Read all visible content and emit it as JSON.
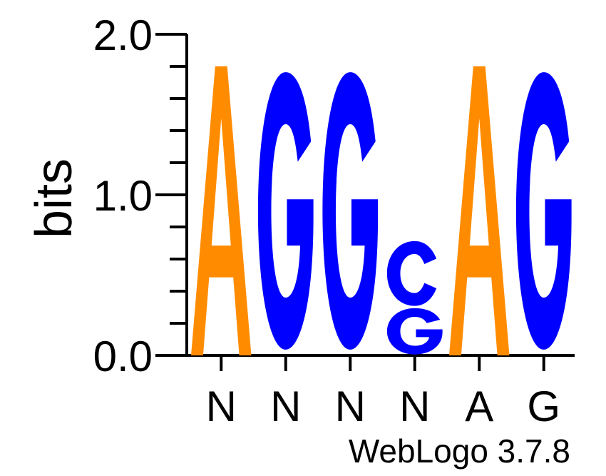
{
  "chart_data": {
    "type": "sequence-logo",
    "ylabel": "bits",
    "ylim": [
      0,
      2.0
    ],
    "y_ticks": [
      "0.0",
      "1.0",
      "2.0"
    ],
    "x_tick_labels": [
      "N",
      "N",
      "N",
      "N",
      "A",
      "G"
    ],
    "footer": "WebLogo 3.7.8",
    "colors": {
      "A": "#ff8c00",
      "G": "#0000ff",
      "C": "#0000ff"
    },
    "positions": [
      {
        "label": "N",
        "letters": [
          {
            "char": "A",
            "bits": 1.8
          }
        ]
      },
      {
        "label": "N",
        "letters": [
          {
            "char": "G",
            "bits": 1.8
          }
        ]
      },
      {
        "label": "N",
        "letters": [
          {
            "char": "G",
            "bits": 1.8
          }
        ]
      },
      {
        "label": "N",
        "letters": [
          {
            "char": "G",
            "bits": 0.3
          },
          {
            "char": "C",
            "bits": 0.42
          }
        ]
      },
      {
        "label": "A",
        "letters": [
          {
            "char": "A",
            "bits": 1.8
          }
        ]
      },
      {
        "label": "G",
        "letters": [
          {
            "char": "G",
            "bits": 1.8
          }
        ]
      }
    ]
  }
}
